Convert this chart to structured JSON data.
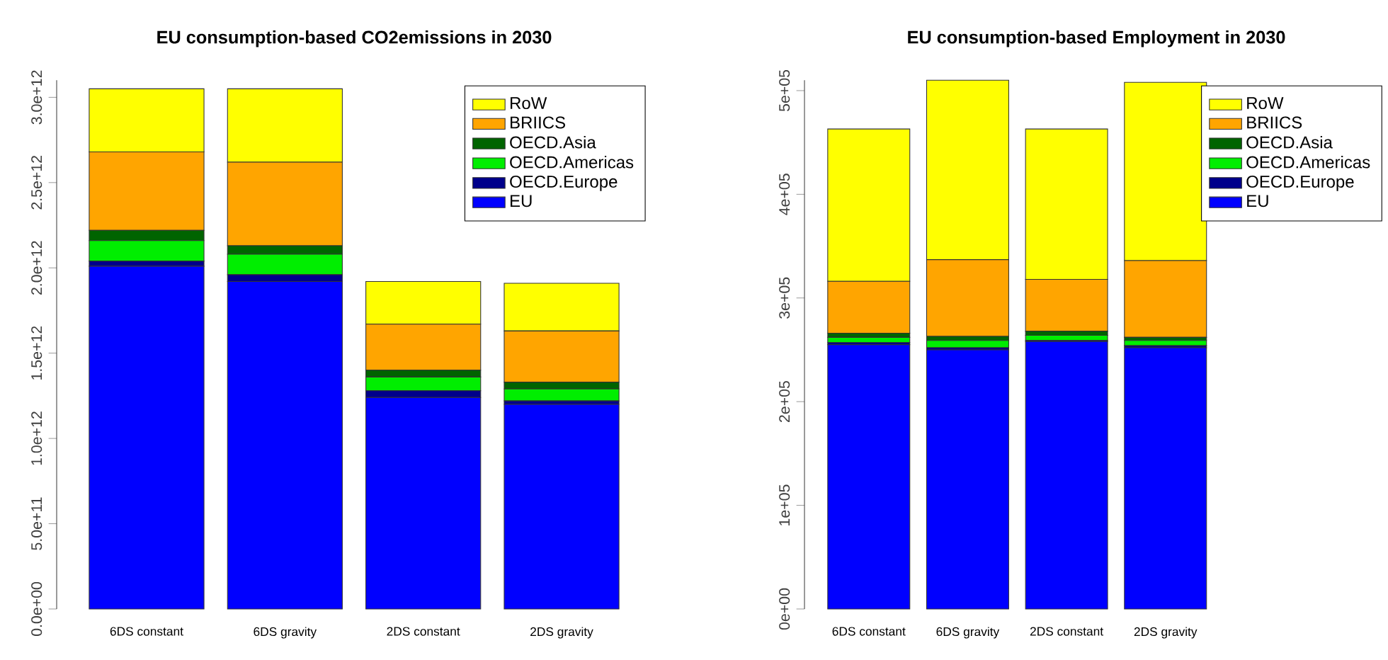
{
  "chart_data": [
    {
      "type": "bar",
      "stacked": true,
      "title": "EU consumption-based CO2emissions in 2030",
      "categories": [
        "6DS constant",
        "6DS gravity",
        "2DS constant",
        "2DS gravity"
      ],
      "series": [
        {
          "name": "EU",
          "color": "#0000ff",
          "values": [
            2010000000000.0,
            1920000000000.0,
            1240000000000.0,
            1200000000000.0
          ]
        },
        {
          "name": "OECD.Europe",
          "color": "#00008b",
          "values": [
            30000000000.0,
            40000000000.0,
            40000000000.0,
            20000000000.0
          ]
        },
        {
          "name": "OECD.Americas",
          "color": "#00ee00",
          "values": [
            120000000000.0,
            120000000000.0,
            80000000000.0,
            70000000000.0
          ]
        },
        {
          "name": "OECD.Asia",
          "color": "#006400",
          "values": [
            60000000000.0,
            50000000000.0,
            40000000000.0,
            40000000000.0
          ]
        },
        {
          "name": "BRIICS",
          "color": "#ffa500",
          "values": [
            460000000000.0,
            490000000000.0,
            270000000000.0,
            300000000000.0
          ]
        },
        {
          "name": "RoW",
          "color": "#ffff00",
          "values": [
            370000000000.0,
            430000000000.0,
            250000000000.0,
            280000000000.0
          ]
        }
      ],
      "ylim": [
        0,
        3100000000000.0
      ],
      "yticks": [
        {
          "value": 0,
          "label": "0.0e+00"
        },
        {
          "value": 500000000000.0,
          "label": "5.0e+11"
        },
        {
          "value": 1000000000000.0,
          "label": "1.0e+12"
        },
        {
          "value": 1500000000000.0,
          "label": "1.5e+12"
        },
        {
          "value": 2000000000000.0,
          "label": "2.0e+12"
        },
        {
          "value": 2500000000000.0,
          "label": "2.5e+12"
        },
        {
          "value": 3000000000000.0,
          "label": "3.0e+12"
        }
      ],
      "legend": "top right"
    },
    {
      "type": "bar",
      "stacked": true,
      "title": "EU consumption-based Employment in 2030",
      "categories": [
        "6DS constant",
        "6DS gravity",
        "2DS constant",
        "2DS gravity"
      ],
      "series": [
        {
          "name": "EU",
          "color": "#0000ff",
          "values": [
            255000,
            250000,
            258000,
            252000
          ]
        },
        {
          "name": "OECD.Europe",
          "color": "#00008b",
          "values": [
            2000,
            2000,
            1000,
            2000
          ]
        },
        {
          "name": "OECD.Americas",
          "color": "#00ee00",
          "values": [
            5000,
            7000,
            5000,
            5000
          ]
        },
        {
          "name": "OECD.Asia",
          "color": "#006400",
          "values": [
            4000,
            4000,
            4000,
            3000
          ]
        },
        {
          "name": "BRIICS",
          "color": "#ffa500",
          "values": [
            50000,
            74000,
            50000,
            74000
          ]
        },
        {
          "name": "RoW",
          "color": "#ffff00",
          "values": [
            147000,
            173000,
            145000,
            172000
          ]
        }
      ],
      "ylim": [
        0,
        510000
      ],
      "yticks": [
        {
          "value": 0,
          "label": "0e+00"
        },
        {
          "value": 100000,
          "label": "1e+05"
        },
        {
          "value": 200000,
          "label": "2e+05"
        },
        {
          "value": 300000,
          "label": "3e+05"
        },
        {
          "value": 400000,
          "label": "4e+05"
        },
        {
          "value": 500000,
          "label": "5e+05"
        }
      ],
      "legend": "top right"
    }
  ]
}
